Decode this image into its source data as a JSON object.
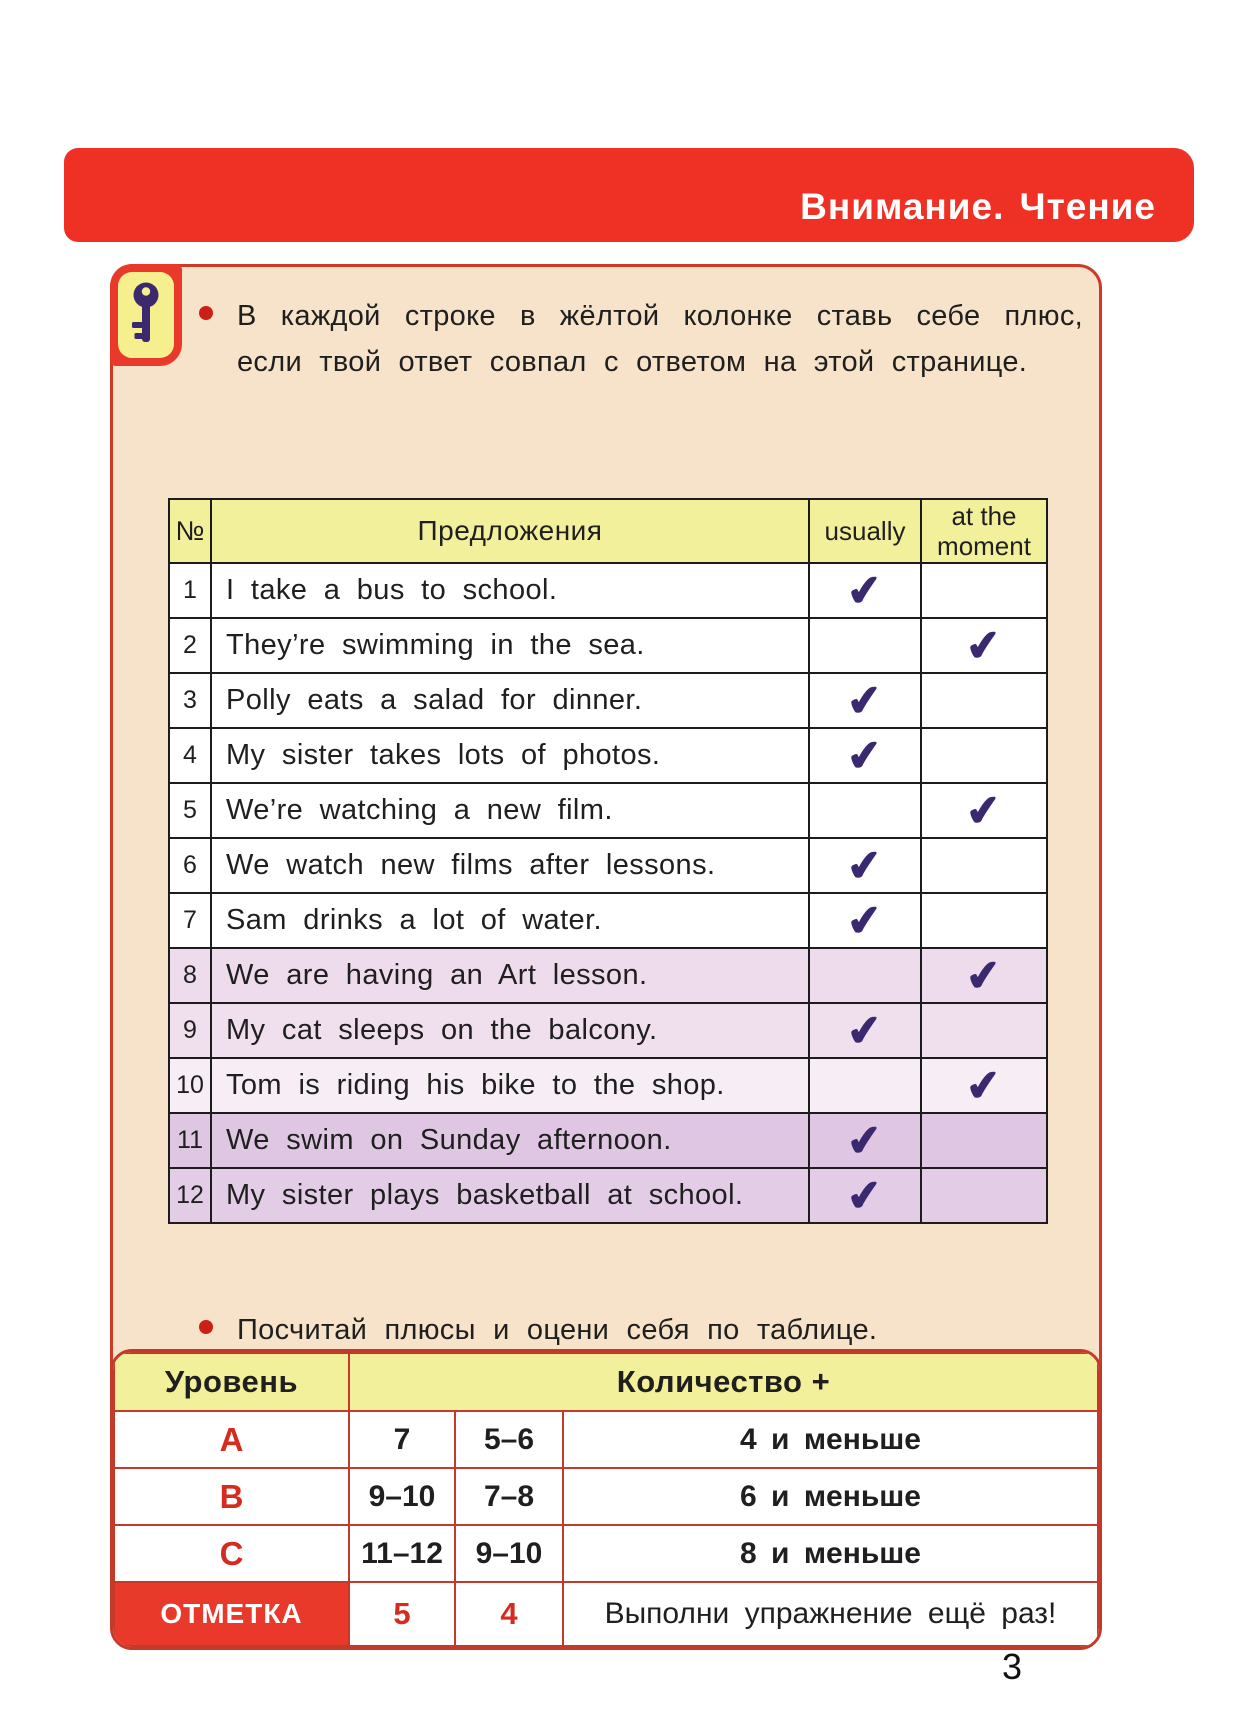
{
  "page": {
    "number": "3"
  },
  "banner": {
    "title": "Внимание. Чтение"
  },
  "colors": {
    "banner_red": "#ee3124",
    "border_red": "#cf3a28",
    "box_bg": "#f7e3c9",
    "header_yellow": "#f3f09c",
    "check_purple": "#3b2970",
    "level_red": "#d62b1f",
    "mark_bg": "#e8392b"
  },
  "check": {
    "glyph": "✔"
  },
  "instructions": {
    "first": "В каждой строке в жёлтой колонке ставь себе плюс, если твой ответ совпал с ответом на этой странице.",
    "second": "Посчитай плюсы и оцени себя по таблице."
  },
  "sentence_table": {
    "headers": {
      "num": "№",
      "sentences": "Предложения",
      "usually": "usually",
      "at_the_moment": "at the moment"
    },
    "rows": [
      {
        "num": "1",
        "text": "I take a bus to school.",
        "usually": true,
        "at_moment": false,
        "tint": "#ffffff"
      },
      {
        "num": "2",
        "text": "They’re swimming in the sea.",
        "usually": false,
        "at_moment": true,
        "tint": "#ffffff"
      },
      {
        "num": "3",
        "text": "Polly eats a salad for dinner.",
        "usually": true,
        "at_moment": false,
        "tint": "#ffffff"
      },
      {
        "num": "4",
        "text": "My sister takes lots of photos.",
        "usually": true,
        "at_moment": false,
        "tint": "#ffffff"
      },
      {
        "num": "5",
        "text": "We’re watching a new film.",
        "usually": false,
        "at_moment": true,
        "tint": "#ffffff"
      },
      {
        "num": "6",
        "text": "We watch new films after lessons.",
        "usually": true,
        "at_moment": false,
        "tint": "#ffffff"
      },
      {
        "num": "7",
        "text": "Sam drinks a lot of water.",
        "usually": true,
        "at_moment": false,
        "tint": "#ffffff"
      },
      {
        "num": "8",
        "text": "We are having an Art lesson.",
        "usually": false,
        "at_moment": true,
        "tint": "#eedbec"
      },
      {
        "num": "9",
        "text": "My cat sleeps on the balcony.",
        "usually": true,
        "at_moment": false,
        "tint": "#f0e0ee"
      },
      {
        "num": "10",
        "text": "Tom is riding his bike to the shop.",
        "usually": false,
        "at_moment": true,
        "tint": "#f7eef5"
      },
      {
        "num": "11",
        "text": "We swim on Sunday afternoon.",
        "usually": true,
        "at_moment": false,
        "tint": "#dfc7e3"
      },
      {
        "num": "12",
        "text": "My sister plays basketball at school.",
        "usually": true,
        "at_moment": false,
        "tint": "#e2cce6"
      }
    ]
  },
  "score_table": {
    "headers": {
      "level": "Уровень",
      "count": "Количество +"
    },
    "rows": [
      {
        "level": "A",
        "c1": "7",
        "c2": "5–6",
        "c3": "4 и меньше"
      },
      {
        "level": "B",
        "c1": "9–10",
        "c2": "7–8",
        "c3": "6 и меньше"
      },
      {
        "level": "C",
        "c1": "11–12",
        "c2": "9–10",
        "c3": "8 и меньше"
      }
    ],
    "mark_row": {
      "label": "ОТМЕТКА",
      "c1": "5",
      "c2": "4",
      "c3": "Выполни упражнение ещё раз!"
    }
  }
}
